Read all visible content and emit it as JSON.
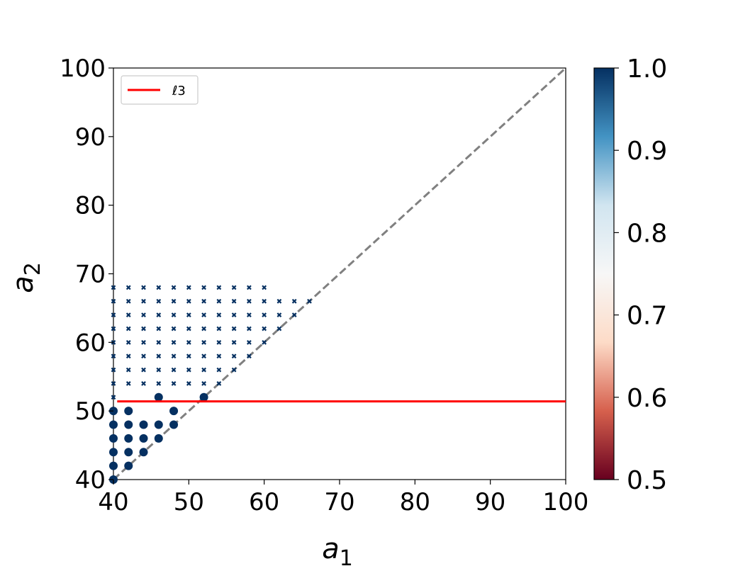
{
  "chart_data": {
    "type": "scatter",
    "title": "",
    "xlabel": "a",
    "xlabel_sub": "1",
    "ylabel": "a",
    "ylabel_sub": "2",
    "xlim": [
      40,
      100
    ],
    "ylim": [
      40,
      100
    ],
    "xticks": [
      40,
      50,
      60,
      70,
      80,
      90,
      100
    ],
    "yticks": [
      40,
      50,
      60,
      70,
      80,
      90,
      100
    ],
    "grid": false,
    "legend": {
      "position": "top-left",
      "entries": [
        {
          "label": "ℓ3",
          "color": "#ff0000",
          "style": "line"
        }
      ]
    },
    "reference_line": {
      "type": "dashed",
      "color": "#808080",
      "from": [
        40,
        40
      ],
      "to": [
        100,
        100
      ]
    },
    "horizontal_line": {
      "y": 51.4,
      "x_from": 40.5,
      "x_to": 100,
      "color": "#ff0000",
      "label": "ℓ3"
    },
    "colorbar": {
      "range": [
        0.5,
        1.0
      ],
      "ticks": [
        "0.5",
        "0.6",
        "0.7",
        "0.8",
        "0.9",
        "1.0"
      ],
      "colormap": "RdBu",
      "stops": [
        "#67001f",
        "#d6604d",
        "#fddbc7",
        "#f7f7f7",
        "#d1e5f0",
        "#4393c3",
        "#053061"
      ]
    },
    "point_color": "#053061",
    "series": [
      {
        "marker": "circle",
        "value": 1.0,
        "points": [
          [
            40,
            40
          ],
          [
            40,
            42
          ],
          [
            42,
            42
          ],
          [
            40,
            44
          ],
          [
            42,
            44
          ],
          [
            44,
            44
          ],
          [
            40,
            46
          ],
          [
            42,
            46
          ],
          [
            44,
            46
          ],
          [
            46,
            46
          ],
          [
            40,
            48
          ],
          [
            42,
            48
          ],
          [
            44,
            48
          ],
          [
            46,
            48
          ],
          [
            48,
            48
          ],
          [
            40,
            50
          ],
          [
            42,
            50
          ],
          [
            48,
            50
          ],
          [
            46,
            52
          ],
          [
            52,
            52
          ]
        ]
      },
      {
        "marker": "x",
        "value": 1.0,
        "points": [
          [
            40,
            52
          ],
          [
            40,
            54
          ],
          [
            42,
            54
          ],
          [
            44,
            54
          ],
          [
            46,
            54
          ],
          [
            48,
            54
          ],
          [
            50,
            54
          ],
          [
            52,
            54
          ],
          [
            54,
            54
          ],
          [
            40,
            56
          ],
          [
            42,
            56
          ],
          [
            44,
            56
          ],
          [
            46,
            56
          ],
          [
            48,
            56
          ],
          [
            50,
            56
          ],
          [
            52,
            56
          ],
          [
            54,
            56
          ],
          [
            56,
            56
          ],
          [
            40,
            58
          ],
          [
            42,
            58
          ],
          [
            44,
            58
          ],
          [
            46,
            58
          ],
          [
            48,
            58
          ],
          [
            50,
            58
          ],
          [
            52,
            58
          ],
          [
            54,
            58
          ],
          [
            56,
            58
          ],
          [
            58,
            58
          ],
          [
            40,
            60
          ],
          [
            42,
            60
          ],
          [
            44,
            60
          ],
          [
            46,
            60
          ],
          [
            48,
            60
          ],
          [
            50,
            60
          ],
          [
            52,
            60
          ],
          [
            54,
            60
          ],
          [
            56,
            60
          ],
          [
            58,
            60
          ],
          [
            60,
            60
          ],
          [
            40,
            62
          ],
          [
            42,
            62
          ],
          [
            44,
            62
          ],
          [
            46,
            62
          ],
          [
            48,
            62
          ],
          [
            50,
            62
          ],
          [
            52,
            62
          ],
          [
            54,
            62
          ],
          [
            56,
            62
          ],
          [
            58,
            62
          ],
          [
            60,
            62
          ],
          [
            62,
            62
          ],
          [
            40,
            64
          ],
          [
            42,
            64
          ],
          [
            44,
            64
          ],
          [
            46,
            64
          ],
          [
            48,
            64
          ],
          [
            50,
            64
          ],
          [
            52,
            64
          ],
          [
            54,
            64
          ],
          [
            56,
            64
          ],
          [
            58,
            64
          ],
          [
            60,
            64
          ],
          [
            62,
            64
          ],
          [
            64,
            64
          ],
          [
            40,
            66
          ],
          [
            42,
            66
          ],
          [
            44,
            66
          ],
          [
            46,
            66
          ],
          [
            48,
            66
          ],
          [
            50,
            66
          ],
          [
            52,
            66
          ],
          [
            54,
            66
          ],
          [
            56,
            66
          ],
          [
            58,
            66
          ],
          [
            60,
            66
          ],
          [
            62,
            66
          ],
          [
            64,
            66
          ],
          [
            66,
            66
          ],
          [
            40,
            68
          ],
          [
            42,
            68
          ],
          [
            44,
            68
          ],
          [
            46,
            68
          ],
          [
            48,
            68
          ],
          [
            50,
            68
          ],
          [
            52,
            68
          ],
          [
            54,
            68
          ],
          [
            56,
            68
          ],
          [
            58,
            68
          ],
          [
            60,
            68
          ]
        ]
      }
    ]
  }
}
